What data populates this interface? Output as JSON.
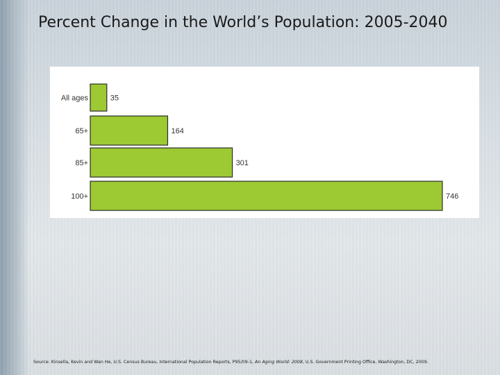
{
  "slide": {
    "title": "Percent Change in the World’s Population: 2005-2040",
    "source": {
      "prefix": "Source: Kinsella, Kevin and Wan He, U.S. Census Bureau, International Population Reports, P95/09-1, ",
      "italic": "An Aging World: 2008",
      "suffix": ", U.S. Government Printing Office, Washington, DC, 2009."
    }
  },
  "chart_data": {
    "type": "bar",
    "orientation": "horizontal",
    "categories": [
      "All ages",
      "65+",
      "85+",
      "100+"
    ],
    "values": [
      35,
      164,
      301,
      746
    ],
    "value_labels": [
      "35",
      "164",
      "301",
      "746"
    ],
    "bar_color": "#9dc933",
    "bar_stroke": "#2b2b2b",
    "xlim": [
      0,
      746
    ],
    "title": "",
    "xlabel": "",
    "ylabel": "",
    "grid": false,
    "legend": "none"
  }
}
